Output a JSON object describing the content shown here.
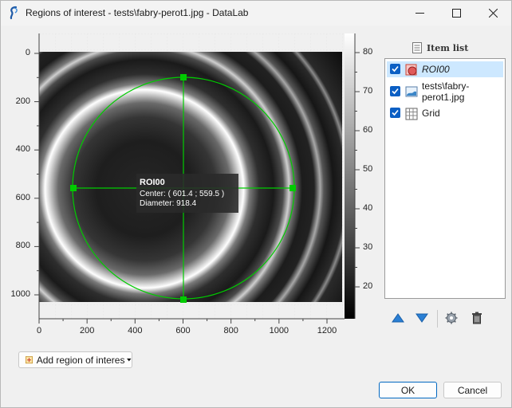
{
  "window": {
    "title": "Regions of interest - tests\\fabry-perot1.jpg - DataLab",
    "accent_color": "#0067c0"
  },
  "plot": {
    "x_ticks": [
      "0",
      "200",
      "400",
      "600",
      "800",
      "1000",
      "1200"
    ],
    "y_ticks": [
      "0",
      "200",
      "400",
      "600",
      "800",
      "1000"
    ],
    "colorbar_ticks": [
      "80",
      "70",
      "60",
      "50",
      "40",
      "30",
      "20"
    ],
    "roi_color": "#00cc00",
    "roi_label": {
      "name": "ROI00",
      "center": "Center: ( 601.4 ; 559.5 )",
      "diameter": "Diameter: 918.4"
    }
  },
  "item_list": {
    "title": "Item list",
    "items": [
      {
        "label": "ROI00",
        "checked": true,
        "selected": true,
        "icon": "roi-shape-icon"
      },
      {
        "label": "tests\\fabry-",
        "label_line2": "perot1.jpg",
        "checked": true,
        "selected": false,
        "icon": "image-icon"
      },
      {
        "label": "Grid",
        "checked": true,
        "selected": false,
        "icon": "grid-icon"
      }
    ],
    "toolbar": [
      "move-up-icon",
      "move-down-icon",
      "settings-icon",
      "delete-icon"
    ]
  },
  "buttons": {
    "add_roi": "Add region of interes",
    "ok": "OK",
    "cancel": "Cancel"
  }
}
